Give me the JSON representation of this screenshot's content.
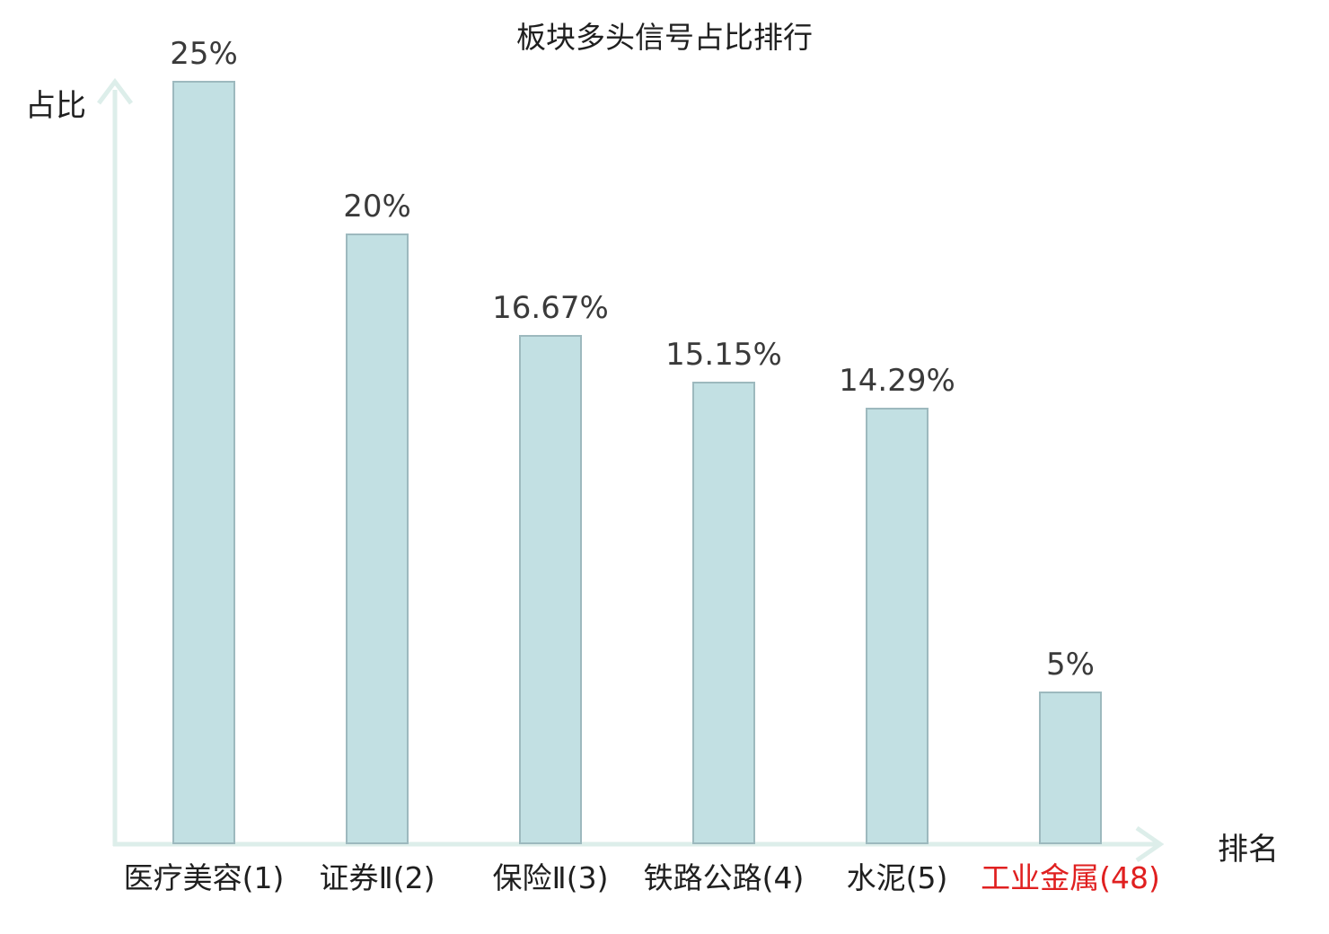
{
  "title": "板块多头信号占比排行",
  "chart_data": {
    "type": "bar",
    "categories": [
      "医疗美容(1)",
      "证券Ⅱ(2)",
      "保险Ⅱ(3)",
      "铁路公路(4)",
      "水泥(5)",
      "工业金属(48)"
    ],
    "values": [
      25,
      20,
      16.67,
      15.15,
      14.29,
      5
    ],
    "value_labels": [
      "25%",
      "20%",
      "16.67%",
      "15.15%",
      "14.29%",
      "5%"
    ],
    "title": "板块多头信号占比排行",
    "xlabel": "排名",
    "ylabel": "占比",
    "ylim": [
      0,
      25
    ],
    "grid": false,
    "legend": false,
    "highlight_index": 5,
    "highlight_category": "工业金属(48)"
  },
  "colors": {
    "bar_fill": "#c2e0e3",
    "bar_border": "#9db9be",
    "axis": "#ddeeea",
    "title_text": "#1f1f1f",
    "category_text": "#1f1f1f",
    "value_text": "#3a3a3a",
    "highlight_text": "#e02020"
  }
}
